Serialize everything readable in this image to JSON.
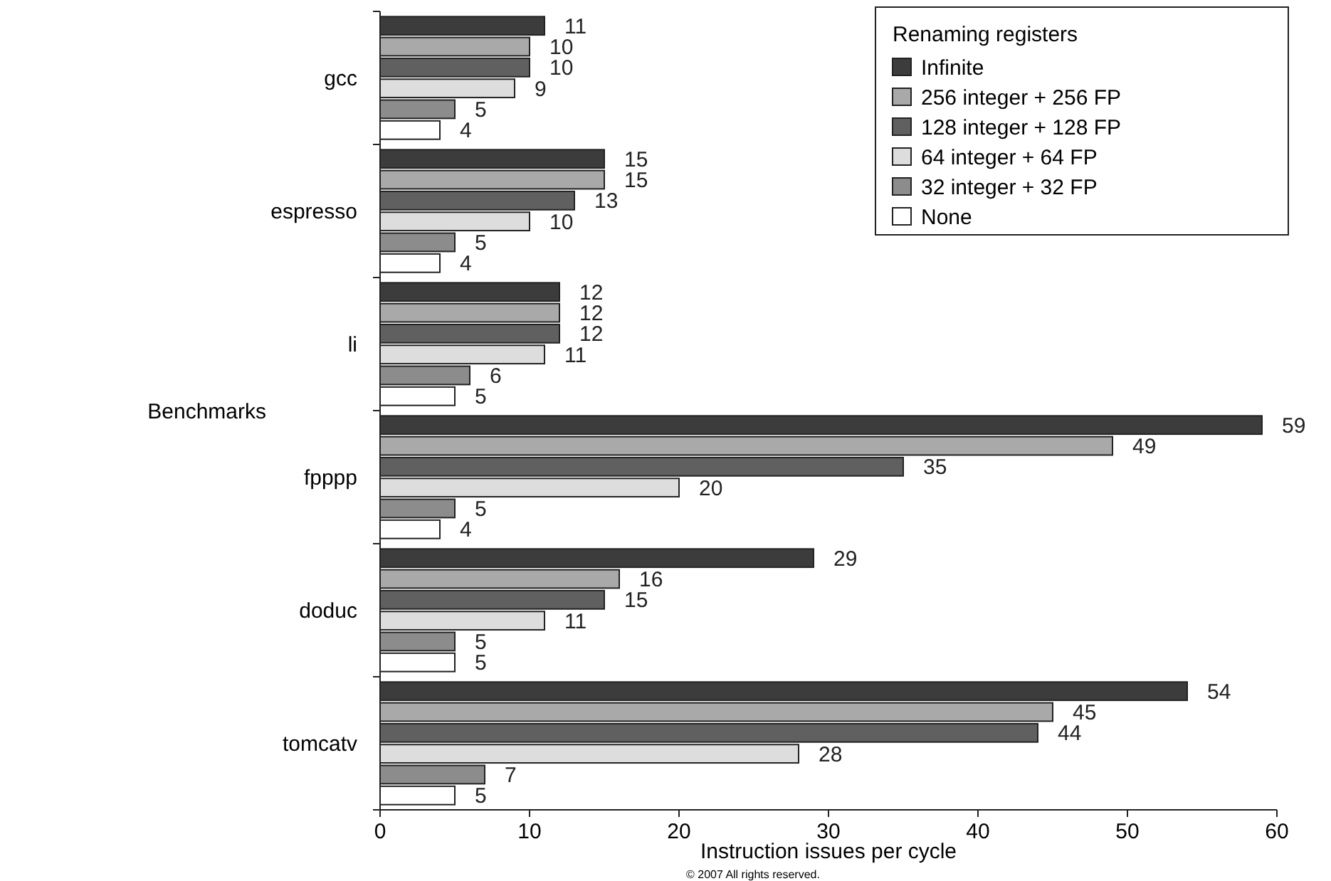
{
  "chart_data": {
    "type": "bar",
    "orientation": "horizontal",
    "xlabel": "Instruction issues per cycle",
    "ylabel": "Benchmarks",
    "legend_title": "Renaming registers",
    "categories": [
      "gcc",
      "espresso",
      "li",
      "fpppp",
      "doduc",
      "tomcatv"
    ],
    "series": [
      {
        "name": "Infinite",
        "color": "#3c3c3c",
        "values": [
          11,
          15,
          12,
          59,
          29,
          54
        ]
      },
      {
        "name": "256 integer + 256 FP",
        "color": "#a9a9a9",
        "values": [
          10,
          15,
          12,
          49,
          16,
          45
        ]
      },
      {
        "name": "128 integer + 128 FP",
        "color": "#606060",
        "values": [
          10,
          13,
          12,
          35,
          15,
          44
        ]
      },
      {
        "name": "64 integer + 64 FP",
        "color": "#dddddd",
        "values": [
          9,
          10,
          11,
          20,
          11,
          28
        ]
      },
      {
        "name": "32 integer + 32 FP",
        "color": "#8c8c8c",
        "values": [
          5,
          5,
          6,
          5,
          5,
          7
        ]
      },
      {
        "name": "None",
        "color": "#ffffff",
        "values": [
          4,
          4,
          5,
          4,
          5,
          5
        ]
      }
    ],
    "xlim": [
      0,
      60
    ],
    "xticks": [
      0,
      10,
      20,
      30,
      40,
      50,
      60
    ],
    "data_labels": true,
    "legend": "top right",
    "annotations": [
      "© 2007 All rights reserved."
    ]
  }
}
